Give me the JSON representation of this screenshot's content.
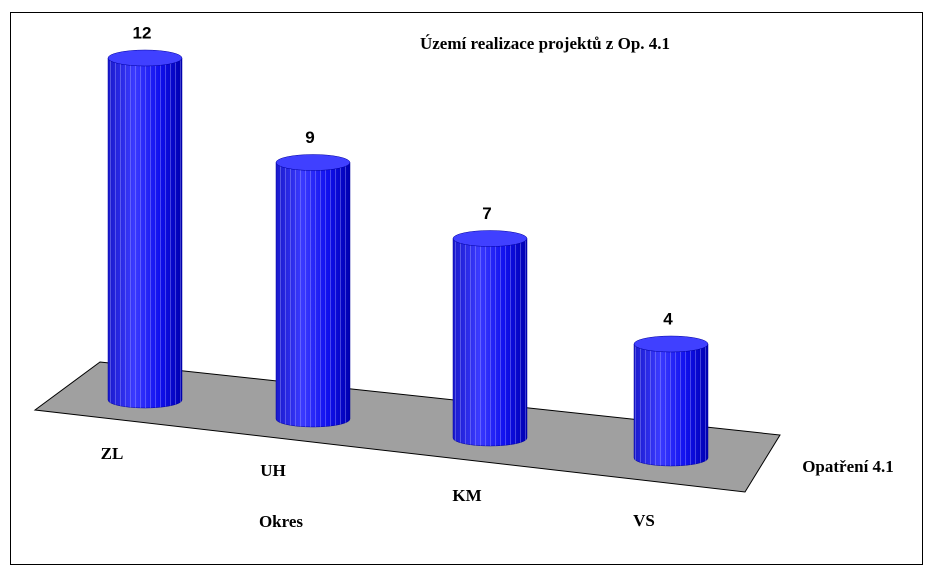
{
  "chart_data": {
    "type": "cylinder-bar",
    "title": "Území realizace projektů z Op. 4.1",
    "x_label": "Okres",
    "categories": [
      "ZL",
      "UH",
      "KM",
      "VS"
    ],
    "series": [
      {
        "name": "Opatření 4.1",
        "color": "#0000ff",
        "values": [
          12,
          9,
          7,
          4
        ]
      }
    ]
  }
}
